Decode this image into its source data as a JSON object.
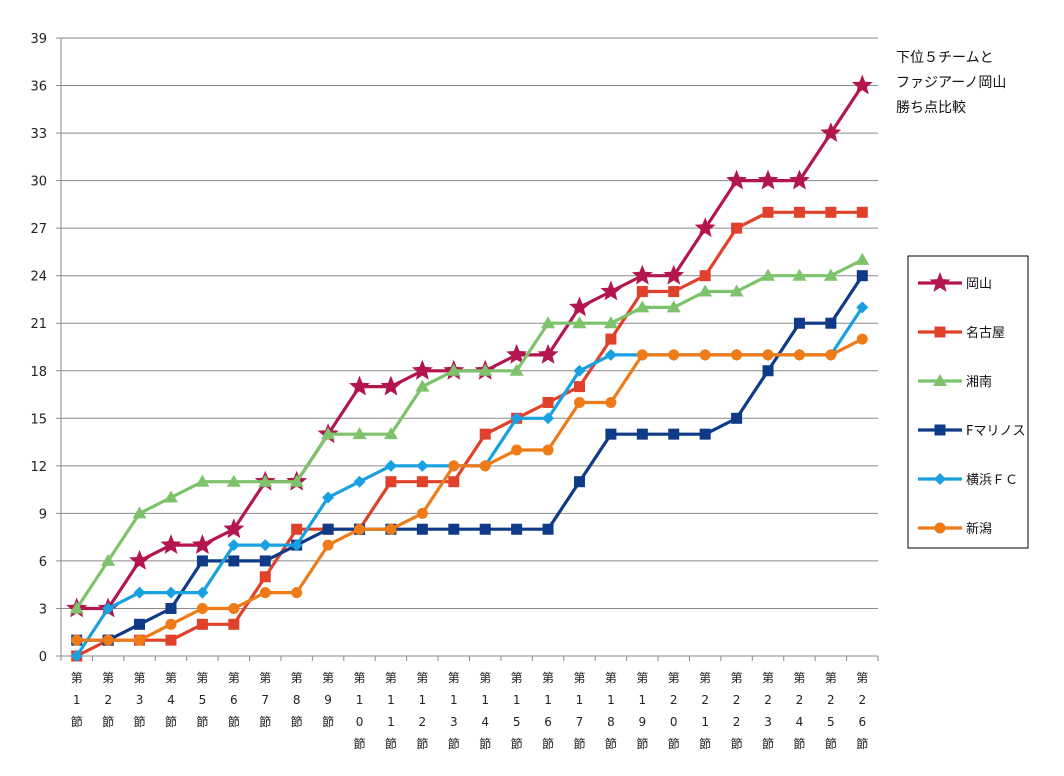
{
  "chart_data": {
    "type": "line",
    "title_lines": [
      "下位５チームと",
      "ファジアーノ岡山",
      "勝ち点比較"
    ],
    "xlabel": "",
    "ylabel": "",
    "ylim": [
      0,
      39
    ],
    "yticks": [
      0,
      3,
      6,
      9,
      12,
      15,
      18,
      21,
      24,
      27,
      30,
      33,
      36,
      39
    ],
    "grid": true,
    "legend_position": "right",
    "categories": [
      "第1節",
      "第2節",
      "第3節",
      "第4節",
      "第5節",
      "第6節",
      "第7節",
      "第8節",
      "第9節",
      "第10節",
      "第11節",
      "第12節",
      "第13節",
      "第14節",
      "第15節",
      "第16節",
      "第17節",
      "第18節",
      "第19節",
      "第20節",
      "第21節",
      "第22節",
      "第23節",
      "第24節",
      "第25節",
      "第26節"
    ],
    "series": [
      {
        "name": "岡山",
        "color": "#b3164e",
        "marker": "star",
        "values": [
          3,
          3,
          6,
          7,
          7,
          8,
          11,
          11,
          14,
          17,
          17,
          18,
          18,
          18,
          19,
          19,
          22,
          23,
          24,
          24,
          27,
          30,
          30,
          30,
          33,
          36
        ]
      },
      {
        "name": "名古屋",
        "color": "#e0412a",
        "marker": "square",
        "values": [
          0,
          1,
          1,
          1,
          2,
          2,
          5,
          8,
          8,
          8,
          11,
          11,
          11,
          14,
          15,
          16,
          17,
          20,
          23,
          23,
          24,
          27,
          28,
          28,
          28,
          28
        ]
      },
      {
        "name": "湘南",
        "color": "#7dc36b",
        "marker": "triangle",
        "values": [
          3,
          6,
          9,
          10,
          11,
          11,
          11,
          11,
          14,
          14,
          14,
          17,
          18,
          18,
          18,
          21,
          21,
          21,
          22,
          22,
          23,
          23,
          24,
          24,
          24,
          25
        ]
      },
      {
        "name": "Fマリノス",
        "color": "#0f3a87",
        "marker": "square",
        "values": [
          1,
          1,
          2,
          3,
          6,
          6,
          6,
          7,
          8,
          8,
          8,
          8,
          8,
          8,
          8,
          8,
          11,
          14,
          14,
          14,
          14,
          15,
          18,
          21,
          21,
          24
        ]
      },
      {
        "name": "横浜ＦＣ",
        "color": "#19a0e0",
        "marker": "diamond",
        "values": [
          0,
          3,
          4,
          4,
          4,
          7,
          7,
          7,
          10,
          11,
          12,
          12,
          12,
          12,
          15,
          15,
          18,
          19,
          19,
          19,
          19,
          19,
          19,
          19,
          19,
          22
        ]
      },
      {
        "name": "新潟",
        "color": "#ee7b17",
        "marker": "circle",
        "values": [
          1,
          1,
          1,
          2,
          3,
          3,
          4,
          4,
          7,
          8,
          8,
          9,
          12,
          12,
          13,
          13,
          16,
          16,
          19,
          19,
          19,
          19,
          19,
          19,
          19,
          20
        ]
      }
    ]
  }
}
